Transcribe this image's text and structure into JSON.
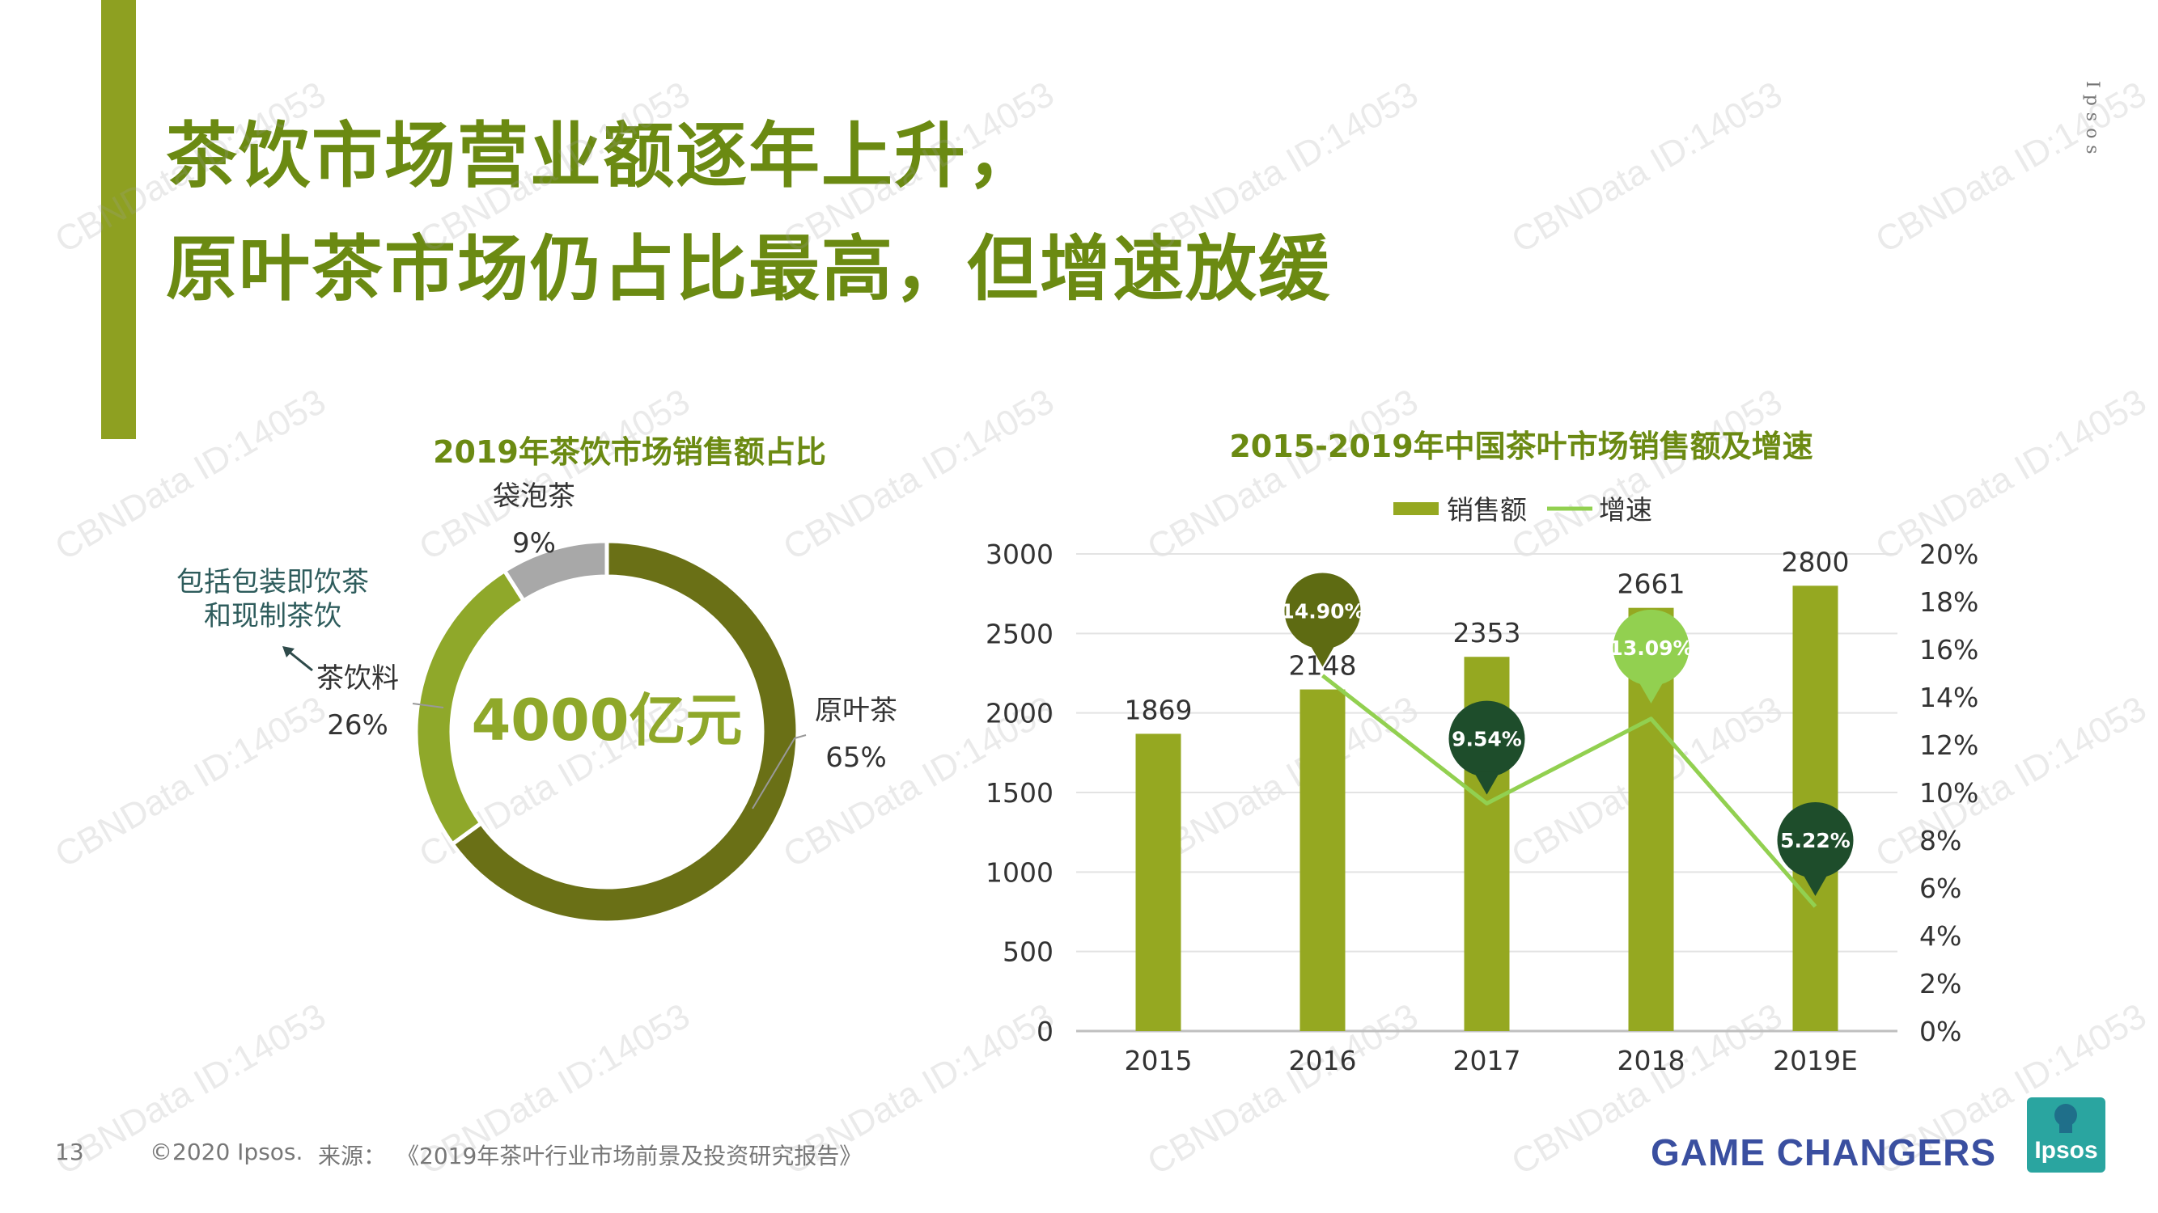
{
  "title": {
    "line1": "茶饮市场营业额逐年上升，",
    "line2": "原叶茶市场仍占比最高，但增速放缓"
  },
  "brand_vertical": "Ipsos",
  "watermark_text": "CBNData ID:14053",
  "footer": {
    "page_number": "13",
    "copyright": "©2020 Ipsos.",
    "source_label": "来源：",
    "source": "《2019年茶叶行业市场前景及投资研究报告》"
  },
  "tagline": "GAME CHANGERS",
  "logo_text": "Ipsos",
  "colors": {
    "title": "#6b8a12",
    "dark_olive": "#6a7016",
    "light_olive": "#8fa82a",
    "gray": "#a8a8a8",
    "bar": "#95a821",
    "line": "#92d050",
    "callout_dark": "#2f4a1a",
    "callout_green": "#92d050",
    "callout_forest": "#1e4d2b",
    "callout_olive": "#5e6b12"
  },
  "chart_data": [
    {
      "type": "pie",
      "variant": "donut",
      "title": "2019年茶饮市场销售额占比",
      "center_label": "4000亿元",
      "slices": [
        {
          "label": "原叶茶",
          "pct_label": "65%",
          "value": 65
        },
        {
          "label": "茶饮料",
          "pct_label": "26%",
          "value": 26
        },
        {
          "label": "袋泡茶",
          "pct_label": "9%",
          "value": 9
        }
      ],
      "annotation": "包括包装即饮茶\n和现制茶饮"
    },
    {
      "type": "bar",
      "title": "2015-2019年中国茶叶市场销售额及增速",
      "categories": [
        "2015",
        "2016",
        "2017",
        "2018",
        "2019E"
      ],
      "series": [
        {
          "name": "销售额",
          "type": "bar",
          "axis": "left",
          "values": [
            1869,
            2148,
            2353,
            2661,
            2800
          ]
        },
        {
          "name": "增速",
          "type": "line",
          "axis": "right",
          "values": [
            null,
            14.9,
            9.54,
            13.09,
            5.22
          ],
          "labels": [
            "",
            "14.90%",
            "9.54%",
            "13.09%",
            "5.22%"
          ]
        }
      ],
      "y_left": {
        "min": 0,
        "max": 3000,
        "step": 500,
        "ticks": [
          "0",
          "500",
          "1000",
          "1500",
          "2000",
          "2500",
          "3000"
        ]
      },
      "y_right": {
        "min": 0,
        "max": 20,
        "step": 2,
        "ticks": [
          "0%",
          "2%",
          "4%",
          "6%",
          "8%",
          "10%",
          "12%",
          "14%",
          "16%",
          "18%",
          "20%"
        ]
      },
      "grid": true,
      "legend_position": "top-center"
    }
  ]
}
